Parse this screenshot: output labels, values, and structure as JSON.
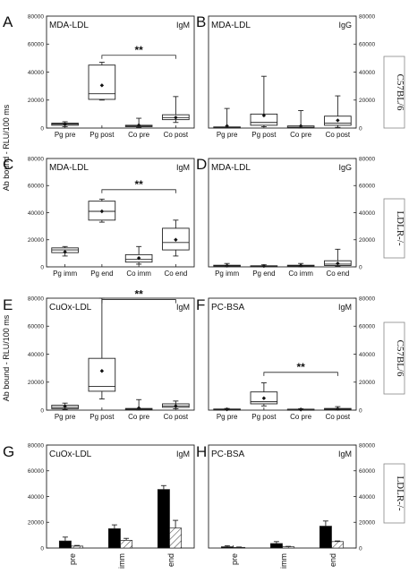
{
  "figure": {
    "y_axis_label_top": "Ab bound - RLU/100 ms",
    "y_axis_label_bottom": "Ab bound - RLU/100 ms",
    "strain_labels": [
      "C57BL/6",
      "LDLR-/-",
      "C57BL/6",
      "LDLR-/-"
    ]
  },
  "chart_data": [
    {
      "letter": "A",
      "type": "box",
      "antigen": "MDA-LDL",
      "isotype": "IgM",
      "categories": [
        "Pg pre",
        "Pg post",
        "Co pre",
        "Co post"
      ],
      "ylim": [
        0,
        80000
      ],
      "yticks": [
        0,
        20000,
        40000,
        60000,
        80000
      ],
      "boxes": [
        {
          "min": 1000,
          "q1": 2000,
          "median": 2800,
          "q3": 3500,
          "max": 4500,
          "mean": 2700
        },
        {
          "min": 20000,
          "q1": 20500,
          "median": 24500,
          "q3": 45000,
          "max": 47000,
          "mean": 30500
        },
        {
          "min": 500,
          "q1": 1000,
          "median": 1500,
          "q3": 2000,
          "max": 7000,
          "mean": 2000
        },
        {
          "min": 4000,
          "q1": 6000,
          "median": 7500,
          "q3": 9500,
          "max": 22500,
          "mean": 7500
        }
      ],
      "significance": {
        "from": 1,
        "to": 3,
        "y": 52000,
        "label": "**"
      }
    },
    {
      "letter": "B",
      "type": "box",
      "antigen": "MDA-LDL",
      "isotype": "IgG",
      "categories": [
        "Pg pre",
        "Pg post",
        "Co pre",
        "Co post"
      ],
      "ylim": [
        0,
        80000
      ],
      "yticks": [
        0,
        20000,
        40000,
        60000,
        80000
      ],
      "boxes": [
        {
          "min": 0,
          "q1": 200,
          "median": 400,
          "q3": 800,
          "max": 14000,
          "mean": 1500
        },
        {
          "min": 1000,
          "q1": 2000,
          "median": 4000,
          "q3": 10000,
          "max": 37000,
          "mean": 9000
        },
        {
          "min": 0,
          "q1": 200,
          "median": 600,
          "q3": 1500,
          "max": 12500,
          "mean": 1500
        },
        {
          "min": 500,
          "q1": 2000,
          "median": 3500,
          "q3": 8500,
          "max": 23000,
          "mean": 5500
        }
      ]
    },
    {
      "letter": "C",
      "type": "box",
      "antigen": "MDA-LDL",
      "isotype": "IgM",
      "categories": [
        "Pg imm",
        "Pg end",
        "Co imm",
        "Co end"
      ],
      "ylim": [
        0,
        80000
      ],
      "yticks": [
        0,
        20000,
        40000,
        60000,
        80000
      ],
      "boxes": [
        {
          "min": 8000,
          "q1": 10500,
          "median": 12500,
          "q3": 14000,
          "max": 15000,
          "mean": 11000
        },
        {
          "min": 33000,
          "q1": 34500,
          "median": 41000,
          "q3": 48500,
          "max": 50000,
          "mean": 41000
        },
        {
          "min": 2000,
          "q1": 3500,
          "median": 5500,
          "q3": 9000,
          "max": 15000,
          "mean": 6500
        },
        {
          "min": 8000,
          "q1": 12500,
          "median": 18000,
          "q3": 28500,
          "max": 34500,
          "mean": 20000
        }
      ],
      "significance": {
        "from": 1,
        "to": 3,
        "y": 57000,
        "label": "**"
      }
    },
    {
      "letter": "D",
      "type": "box",
      "antigen": "MDA-LDL",
      "isotype": "IgG",
      "categories": [
        "Pg imm",
        "Pg end",
        "Co imm",
        "Co end"
      ],
      "ylim": [
        0,
        80000
      ],
      "yticks": [
        0,
        20000,
        40000,
        60000,
        80000
      ],
      "boxes": [
        {
          "min": 0,
          "q1": 500,
          "median": 800,
          "q3": 1200,
          "max": 2500,
          "mean": 900
        },
        {
          "min": 0,
          "q1": 300,
          "median": 500,
          "q3": 800,
          "max": 1500,
          "mean": 600
        },
        {
          "min": 0,
          "q1": 500,
          "median": 800,
          "q3": 1200,
          "max": 2500,
          "mean": 1000
        },
        {
          "min": 500,
          "q1": 1000,
          "median": 2000,
          "q3": 4500,
          "max": 13000,
          "mean": 2500
        }
      ]
    },
    {
      "letter": "E",
      "type": "box",
      "antigen": "CuOx-LDL",
      "isotype": "IgM",
      "categories": [
        "Pg pre",
        "Pg post",
        "Co pre",
        "Co post"
      ],
      "ylim": [
        0,
        80000
      ],
      "yticks": [
        0,
        20000,
        40000,
        60000,
        80000
      ],
      "boxes": [
        {
          "min": 500,
          "q1": 1000,
          "median": 2000,
          "q3": 3500,
          "max": 5000,
          "mean": 2500
        },
        {
          "min": 8000,
          "q1": 13500,
          "median": 17000,
          "q3": 37000,
          "max": 80000,
          "mean": 28000
        },
        {
          "min": 0,
          "q1": 300,
          "median": 700,
          "q3": 1200,
          "max": 7500,
          "mean": 1500
        },
        {
          "min": 1000,
          "q1": 2000,
          "median": 3000,
          "q3": 4500,
          "max": 6500,
          "mean": 3000
        }
      ],
      "significance": {
        "from": 1,
        "to": 3,
        "y": 79000,
        "label": "**"
      }
    },
    {
      "letter": "F",
      "type": "box",
      "antigen": "PC-BSA",
      "isotype": "IgM",
      "categories": [
        "Pg pre",
        "Pg post",
        "Co pre",
        "Co post"
      ],
      "ylim": [
        0,
        80000
      ],
      "yticks": [
        0,
        20000,
        40000,
        60000,
        80000
      ],
      "boxes": [
        {
          "min": 0,
          "q1": 300,
          "median": 500,
          "q3": 800,
          "max": 1200,
          "mean": 500
        },
        {
          "min": 3000,
          "q1": 4500,
          "median": 6000,
          "q3": 13000,
          "max": 19500,
          "mean": 8500
        },
        {
          "min": 0,
          "q1": 200,
          "median": 400,
          "q3": 700,
          "max": 1000,
          "mean": 400
        },
        {
          "min": 0,
          "q1": 500,
          "median": 800,
          "q3": 1200,
          "max": 2500,
          "mean": 900
        }
      ],
      "significance": {
        "from": 1,
        "to": 3,
        "y": 27000,
        "label": "**"
      }
    },
    {
      "letter": "G",
      "type": "bar",
      "antigen": "CuOx-LDL",
      "isotype": "IgM",
      "categories": [
        "pre",
        "imm",
        "end"
      ],
      "ylim": [
        0,
        80000
      ],
      "yticks": [
        0,
        20000,
        40000,
        60000,
        80000
      ],
      "series": [
        {
          "fill": "solid",
          "values": [
            5500,
            15000,
            45500
          ],
          "errors": [
            3000,
            3000,
            3000
          ]
        },
        {
          "fill": "hatched",
          "values": [
            1500,
            6000,
            15500
          ],
          "errors": [
            500,
            1500,
            6000
          ]
        }
      ]
    },
    {
      "letter": "H",
      "type": "bar",
      "antigen": "PC-BSA",
      "isotype": "IgM",
      "categories": [
        "pre",
        "imm",
        "end"
      ],
      "ylim": [
        0,
        80000
      ],
      "yticks": [
        0,
        20000,
        40000,
        60000,
        80000
      ],
      "series": [
        {
          "fill": "solid",
          "values": [
            1000,
            3500,
            17000
          ],
          "errors": [
            800,
            1500,
            4000
          ]
        },
        {
          "fill": "hatched",
          "values": [
            500,
            1000,
            5000
          ],
          "errors": [
            300,
            300,
            500
          ]
        }
      ]
    }
  ]
}
